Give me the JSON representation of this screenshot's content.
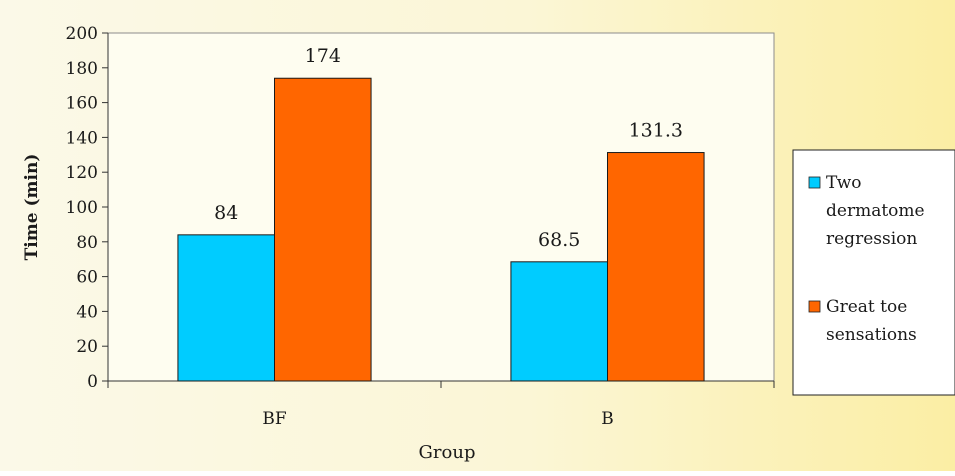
{
  "chart_data": {
    "type": "bar",
    "categories": [
      "BF",
      "B"
    ],
    "series": [
      {
        "name": "Two dermatome regression",
        "values": [
          84,
          68.5
        ],
        "color": "#00ccff"
      },
      {
        "name": "Great toe sensations",
        "values": [
          174,
          131.3
        ],
        "color": "#ff6600"
      }
    ],
    "data_labels": [
      [
        "84",
        "68.5"
      ],
      [
        "174",
        "131.3"
      ]
    ],
    "title": "",
    "xlabel": "Group",
    "ylabel": "Time (min)",
    "ylim": [
      0,
      200
    ],
    "yticks": [
      "0",
      "20",
      "40",
      "60",
      "80",
      "100",
      "120",
      "140",
      "160",
      "180",
      "200"
    ],
    "grid": false,
    "legend": {
      "placement": "right",
      "entries": [
        {
          "lines": [
            "Two",
            "dermatome",
            "regression"
          ],
          "color": "#00ccff"
        },
        {
          "lines": [
            "Great toe",
            "sensations"
          ],
          "color": "#ff6600"
        }
      ]
    }
  }
}
